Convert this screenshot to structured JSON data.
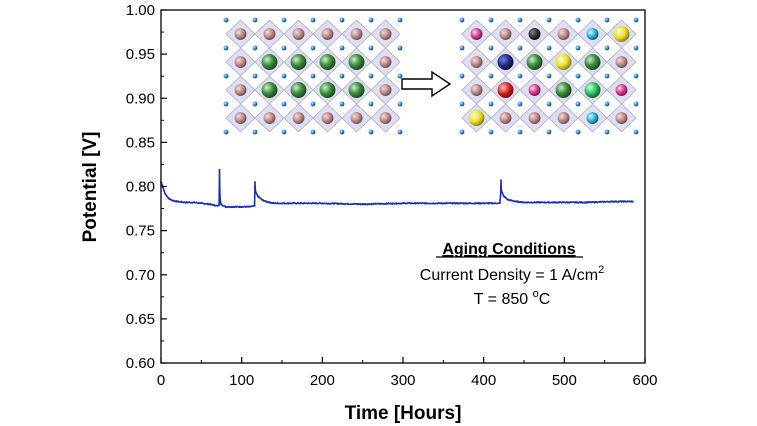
{
  "chart_data": {
    "type": "line",
    "title": "",
    "xlabel": "Time [Hours]",
    "ylabel": "Potential [V]",
    "xlim": [
      0,
      600
    ],
    "ylim": [
      0.6,
      1.0
    ],
    "xticks": [
      0,
      100,
      200,
      300,
      400,
      500,
      600
    ],
    "yticks": [
      0.6,
      0.65,
      0.7,
      0.75,
      0.8,
      0.85,
      0.9,
      0.95,
      1.0
    ],
    "xtick_labels": [
      "0",
      "100",
      "200",
      "300",
      "400",
      "500",
      "600"
    ],
    "ytick_labels": [
      "0.60",
      "0.65",
      "0.70",
      "0.75",
      "0.80",
      "0.85",
      "0.90",
      "0.95",
      "1.00"
    ],
    "grid": false,
    "series": [
      {
        "color": "#1a2fb5",
        "x": [
          0,
          2,
          5,
          10,
          15,
          20,
          30,
          40,
          50,
          60,
          70,
          72,
          72.5,
          73,
          74,
          80,
          90,
          100,
          110,
          116,
          116.5,
          117,
          120,
          125,
          130,
          140,
          160,
          200,
          250,
          300,
          350,
          400,
          420,
          421,
          421.5,
          422,
          425,
          430,
          440,
          450,
          470,
          500,
          530,
          560,
          585
        ],
        "y": [
          0.805,
          0.8,
          0.792,
          0.786,
          0.784,
          0.783,
          0.782,
          0.782,
          0.781,
          0.78,
          0.778,
          0.779,
          0.819,
          0.79,
          0.78,
          0.777,
          0.777,
          0.777,
          0.777,
          0.778,
          0.805,
          0.795,
          0.789,
          0.785,
          0.783,
          0.781,
          0.781,
          0.781,
          0.78,
          0.781,
          0.781,
          0.781,
          0.781,
          0.79,
          0.807,
          0.795,
          0.789,
          0.785,
          0.783,
          0.782,
          0.782,
          0.782,
          0.782,
          0.783,
          0.783
        ]
      }
    ],
    "annotations": {
      "heading": "Aging Conditions",
      "line1_text": "Current Density = 1 A/cm",
      "line1_sup": "2",
      "line2_text": "T = 850 ",
      "line2_sup": "o",
      "line2_unit": "C"
    }
  }
}
